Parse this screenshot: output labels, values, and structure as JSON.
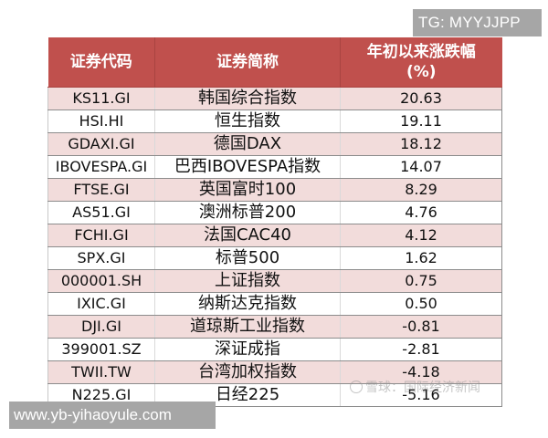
{
  "badges": {
    "tg": "TG: MYYJJPP",
    "url": "www.yb-yihaoyule.com"
  },
  "watermark": {
    "text": "雪球：国际经济新闻"
  },
  "colors": {
    "header_bg": "#c0504d",
    "row_pink": "#f2dcdb",
    "row_white": "#ffffff",
    "badge_bg": "#a6a6a6"
  },
  "table": {
    "headers": {
      "code": "证券代码",
      "name": "证券简称",
      "change_line1": "年初以来涨跌幅",
      "change_line2": "(%)"
    },
    "rows": [
      {
        "code": "KS11.GI",
        "name": "韩国综合指数",
        "change": "20.63"
      },
      {
        "code": "HSI.HI",
        "name": "恒生指数",
        "change": "19.11"
      },
      {
        "code": "GDAXI.GI",
        "name": "德国DAX",
        "change": "18.12"
      },
      {
        "code": "IBOVESPA.GI",
        "name": "巴西IBOVESPA指数",
        "change": "14.07"
      },
      {
        "code": "FTSE.GI",
        "name": "英国富时100",
        "change": "8.29"
      },
      {
        "code": "AS51.GI",
        "name": "澳洲标普200",
        "change": "4.76"
      },
      {
        "code": "FCHI.GI",
        "name": "法国CAC40",
        "change": "4.12"
      },
      {
        "code": "SPX.GI",
        "name": "标普500",
        "change": "1.62"
      },
      {
        "code": "000001.SH",
        "name": "上证指数",
        "change": "0.75"
      },
      {
        "code": "IXIC.GI",
        "name": "纳斯达克指数",
        "change": "0.50"
      },
      {
        "code": "DJI.GI",
        "name": "道琼斯工业指数",
        "change": "-0.81"
      },
      {
        "code": "399001.SZ",
        "name": "深证成指",
        "change": "-2.81"
      },
      {
        "code": "TWII.TW",
        "name": "台湾加权指数",
        "change": "-4.18"
      },
      {
        "code": "N225.GI",
        "name": "日经225",
        "change": "-5.16"
      }
    ]
  }
}
